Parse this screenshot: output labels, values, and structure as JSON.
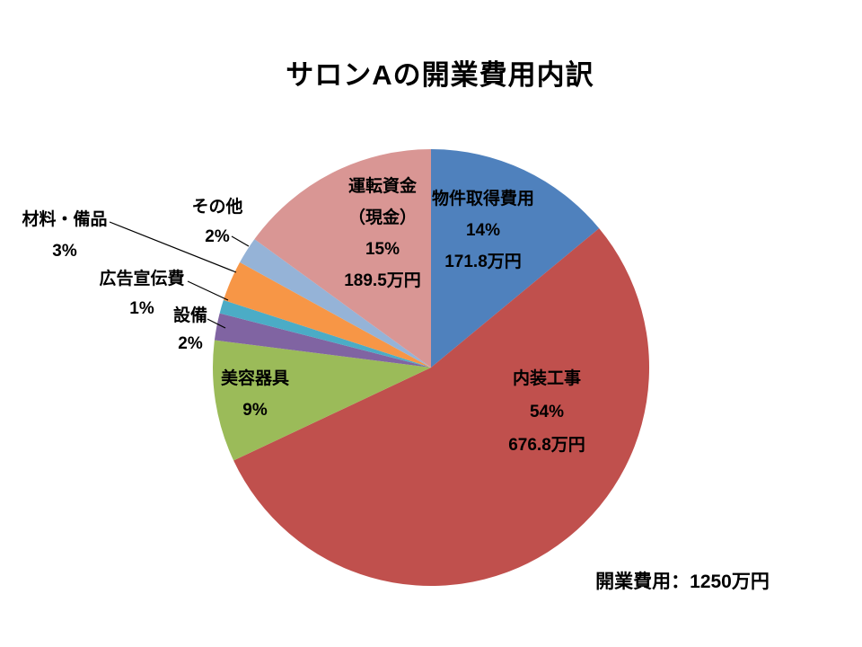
{
  "chart_data": {
    "type": "pie",
    "title": "サロンAの開業費用内訳",
    "total_label": "開業費用：1250万円",
    "total_value_man_yen": 1250,
    "start_angle_deg": -90,
    "direction": "clockwise",
    "legend": "none",
    "slices": [
      {
        "name": "物件取得費用",
        "pct": 14,
        "amount": "171.8万円",
        "amount_man_yen": 171.8,
        "color": "#4F81BD",
        "label_lines": [
          "物件取得費用",
          "14%",
          "171.8万円"
        ]
      },
      {
        "name": "内装工事",
        "pct": 54,
        "amount": "676.8万円",
        "amount_man_yen": 676.8,
        "color": "#C0504D",
        "label_lines": [
          "内装工事",
          "54%",
          "676.8万円"
        ]
      },
      {
        "name": "美容器具",
        "pct": 9,
        "color": "#9BBB59",
        "label_lines": [
          "美容器具",
          "9%"
        ]
      },
      {
        "name": "設備",
        "pct": 2,
        "color": "#8064A2",
        "label_lines": [
          "設備",
          "2%"
        ]
      },
      {
        "name": "広告宣伝費",
        "pct": 1,
        "color": "#4BACC6",
        "label_lines": [
          "広告宣伝費",
          "1%"
        ]
      },
      {
        "name": "材料・備品",
        "pct": 3,
        "color": "#F79646",
        "label_lines": [
          "材料・備品",
          "3%"
        ]
      },
      {
        "name": "その他",
        "pct": 2,
        "color": "#95B3D7",
        "label_lines": [
          "その他",
          "2%"
        ]
      },
      {
        "name": "運転資金（現金）",
        "pct": 15,
        "amount": "189.5万円",
        "amount_man_yen": 189.5,
        "color": "#D99694",
        "label_lines": [
          "運転資金",
          "（現金）",
          "15%",
          "189.5万円"
        ]
      }
    ],
    "text_color": "#000000",
    "leader_line_color": "#000000"
  }
}
